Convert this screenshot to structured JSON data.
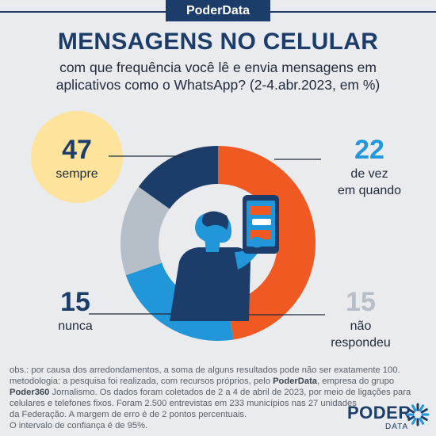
{
  "header": {
    "brand": "PoderData"
  },
  "chart_data": {
    "type": "donut",
    "title": "MENSAGENS NO CELULAR",
    "subtitle_lines": [
      "com que frequência você lê e envia mensagens em",
      "aplicativos como o WhatsApp? (2-4.abr.2023, em %)"
    ],
    "slices": [
      {
        "value": 47,
        "label_lines": [
          "sempre"
        ],
        "color": "#f05a22"
      },
      {
        "value": 22,
        "label_lines": [
          "de vez",
          "em quando"
        ],
        "color": "#2196d9"
      },
      {
        "value": 15,
        "label_lines": [
          "não",
          "respondeu"
        ],
        "color": "#b6bec7"
      },
      {
        "value": 15,
        "label_lines": [
          "nunca"
        ],
        "color": "#1c3d6a"
      }
    ],
    "colors": {
      "label_dark": "#1c3d6a",
      "label_gray": "#b6bec7",
      "highlight_circle": "#fde39b"
    }
  },
  "notes": {
    "l1": "obs.: por causa dos arredondamentos, a soma de alguns resultados pode não ser exatamente 100.",
    "l2a": "metodologia: a pesquisa foi realizada, com recursos próprios, pelo ",
    "l2b": "PoderData",
    "l2c": ", empresa do grupo",
    "l3a": "Poder360",
    "l3b": " Jornalismo. Os dados foram coletados de 2 a 4 de abril de 2023, por meio de ligações para",
    "l4": "celulares e telefones fixos. Foram 2.500 entrevistas em 233 municípios nas 27 unidades",
    "l5": "da Federação. A margem de erro é de 2 pontos percentuais.",
    "l6": "O intervalo de confiança é de 95%."
  },
  "logo": {
    "main": "PODER",
    "sub": "DATA"
  }
}
